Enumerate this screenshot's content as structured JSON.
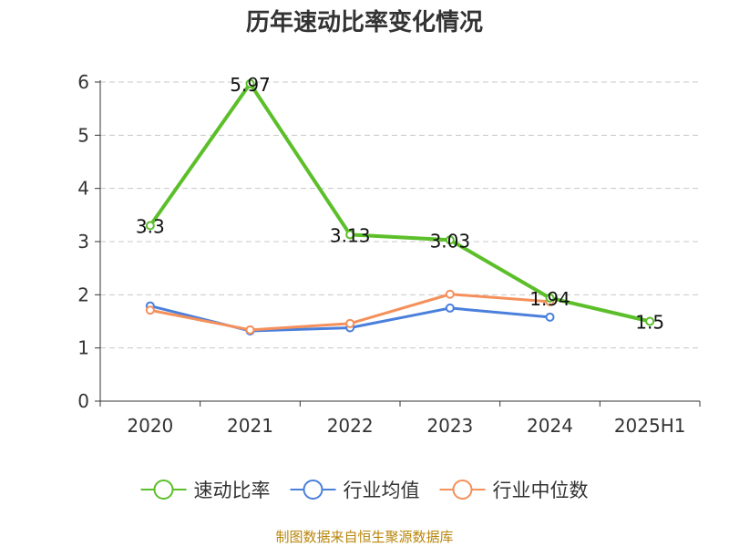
{
  "chart_data": {
    "type": "line",
    "title": "历年速动比率变化情况",
    "categories": [
      "2020",
      "2021",
      "2022",
      "2023",
      "2024",
      "2025H1"
    ],
    "yticks": [
      "0",
      "1",
      "2",
      "3",
      "4",
      "5",
      "6"
    ],
    "ylim": [
      0,
      6
    ],
    "grid": true,
    "legend_position": "bottom",
    "series": [
      {
        "name": "速动比率",
        "color": "#5cbf2a",
        "values": [
          3.3,
          5.97,
          3.13,
          3.03,
          1.94,
          1.5
        ],
        "labels": [
          "3.3",
          "5.97",
          "3.13",
          "3.03",
          "1.94",
          "1.5"
        ]
      },
      {
        "name": "行业均值",
        "color": "#4a7fdc",
        "values": [
          1.79,
          1.32,
          1.38,
          1.75,
          1.58,
          null
        ]
      },
      {
        "name": "行业中位数",
        "color": "#f5905a",
        "values": [
          1.71,
          1.34,
          1.46,
          2.01,
          1.87,
          null
        ]
      }
    ],
    "source": "制图数据来自恒生聚源数据库"
  }
}
